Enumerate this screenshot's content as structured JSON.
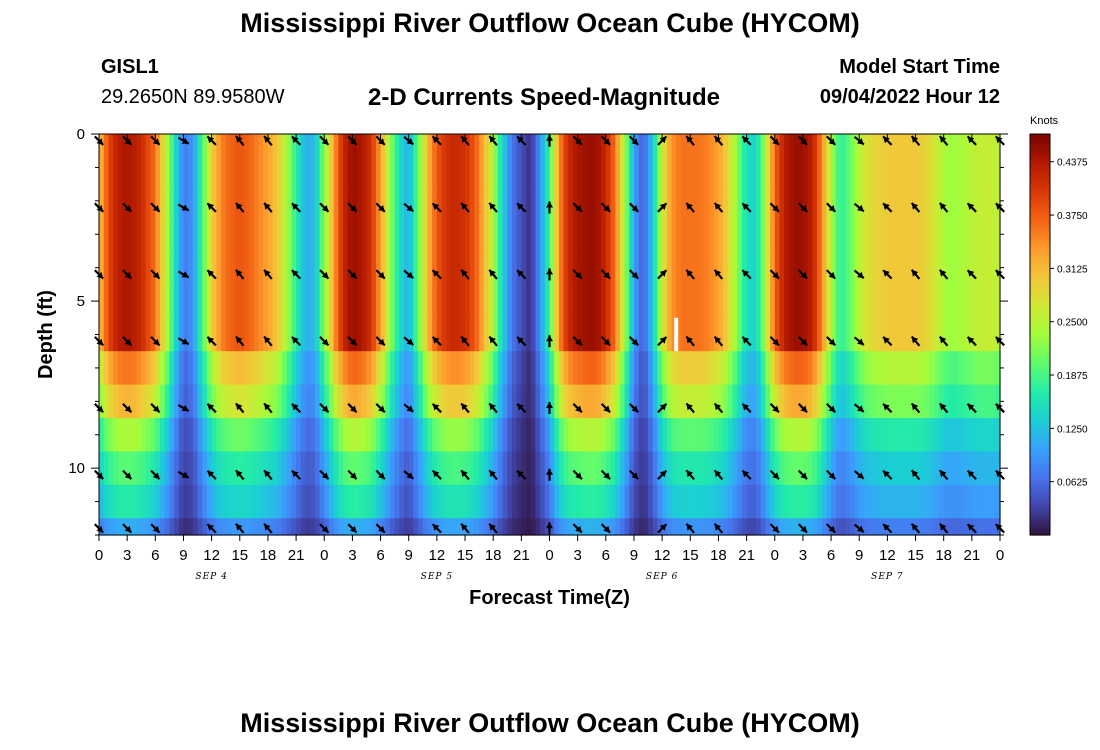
{
  "page": {
    "title": "Mississippi River Outflow Ocean Cube (HYCOM)",
    "title_repeat": "Mississippi River Outflow Ocean Cube (HYCOM)",
    "station_id": "GISL1",
    "station_coords": "29.2650N  89.9580W",
    "subtitle": "2-D Currents Speed-Magnitude",
    "model_start_label": "Model Start Time",
    "model_start_value": "09/04/2022 Hour 12"
  },
  "chart_data": {
    "type": "heatmap",
    "title": "2-D Currents Speed-Magnitude",
    "xlabel": "Forecast Time(Z)",
    "ylabel": "Depth (ft)",
    "x_tick_labels": [
      "0",
      "3",
      "6",
      "9",
      "12",
      "15",
      "18",
      "21",
      "0",
      "3",
      "6",
      "9",
      "12",
      "15",
      "18",
      "21",
      "0",
      "3",
      "6",
      "9",
      "12",
      "15",
      "18",
      "21",
      "0",
      "3",
      "6",
      "9",
      "12",
      "15",
      "18",
      "21",
      "0"
    ],
    "x_range_hours": [
      0,
      96
    ],
    "day_labels": [
      {
        "label": "SEP 4",
        "hour": 12
      },
      {
        "label": "SEP 5",
        "hour": 36
      },
      {
        "label": "SEP 6",
        "hour": 60
      },
      {
        "label": "SEP 7",
        "hour": 84
      }
    ],
    "y_ticks": [
      0,
      5,
      10
    ],
    "y_range_ft": [
      0,
      12
    ],
    "depth_rows_ft": [
      0,
      1,
      2,
      3,
      4,
      5,
      6,
      7,
      8,
      9,
      10,
      11,
      12
    ],
    "colorbar": {
      "unit": "Knots",
      "range": [
        0,
        0.47
      ],
      "tick_labels": [
        "0.4375",
        "0.3750",
        "0.3125",
        "0.2500",
        "0.1875",
        "0.1250",
        "0.0625"
      ],
      "tick_values": [
        0.4375,
        0.375,
        0.3125,
        0.25,
        0.1875,
        0.125,
        0.0625
      ],
      "colors": [
        "#30123b",
        "#4145ab",
        "#4675ed",
        "#39a2fc",
        "#1bcfd4",
        "#24eca6",
        "#61fc6c",
        "#a4fc3b",
        "#d1e834",
        "#f3c63a",
        "#fe9b2d",
        "#f36315",
        "#d93806",
        "#b11901",
        "#7a0402"
      ]
    },
    "surface_speed_by_hour": [
      [
        0,
        0.3
      ],
      [
        1,
        0.39
      ],
      [
        2,
        0.43
      ],
      [
        3,
        0.44
      ],
      [
        4,
        0.43
      ],
      [
        5,
        0.4
      ],
      [
        6,
        0.36
      ],
      [
        7,
        0.27
      ],
      [
        8,
        0.16
      ],
      [
        9,
        0.07
      ],
      [
        10,
        0.09
      ],
      [
        11,
        0.19
      ],
      [
        12,
        0.29
      ],
      [
        13,
        0.35
      ],
      [
        14,
        0.37
      ],
      [
        15,
        0.38
      ],
      [
        16,
        0.37
      ],
      [
        17,
        0.35
      ],
      [
        18,
        0.33
      ],
      [
        19,
        0.3
      ],
      [
        20,
        0.24
      ],
      [
        21,
        0.17
      ],
      [
        22,
        0.11
      ],
      [
        23,
        0.12
      ],
      [
        24,
        0.22
      ],
      [
        25,
        0.33
      ],
      [
        26,
        0.42
      ],
      [
        27,
        0.45
      ],
      [
        28,
        0.44
      ],
      [
        29,
        0.41
      ],
      [
        30,
        0.33
      ],
      [
        31,
        0.23
      ],
      [
        32,
        0.15
      ],
      [
        33,
        0.11
      ],
      [
        34,
        0.2
      ],
      [
        35,
        0.31
      ],
      [
        36,
        0.38
      ],
      [
        37,
        0.41
      ],
      [
        38,
        0.42
      ],
      [
        39,
        0.41
      ],
      [
        40,
        0.38
      ],
      [
        41,
        0.32
      ],
      [
        42,
        0.24
      ],
      [
        43,
        0.14
      ],
      [
        44,
        0.07
      ],
      [
        45,
        0.04
      ],
      [
        46,
        0.02
      ],
      [
        47,
        0.09
      ],
      [
        48,
        0.18
      ],
      [
        49,
        0.34
      ],
      [
        50,
        0.42
      ],
      [
        51,
        0.44
      ],
      [
        52,
        0.45
      ],
      [
        53,
        0.45
      ],
      [
        54,
        0.42
      ],
      [
        55,
        0.36
      ],
      [
        56,
        0.24
      ],
      [
        57,
        0.1
      ],
      [
        58,
        0.05
      ],
      [
        59,
        0.13
      ],
      [
        60,
        0.26
      ],
      [
        61,
        0.34
      ],
      [
        62,
        0.36
      ],
      [
        63,
        0.36
      ],
      [
        64,
        0.36
      ],
      [
        65,
        0.35
      ],
      [
        66,
        0.33
      ],
      [
        67,
        0.29
      ],
      [
        68,
        0.22
      ],
      [
        69,
        0.15
      ],
      [
        70,
        0.14
      ],
      [
        71,
        0.24
      ],
      [
        72,
        0.37
      ],
      [
        73,
        0.43
      ],
      [
        74,
        0.45
      ],
      [
        75,
        0.45
      ],
      [
        76,
        0.43
      ],
      [
        77,
        0.35
      ],
      [
        78,
        0.24
      ],
      [
        79,
        0.17
      ],
      [
        80,
        0.2
      ],
      [
        81,
        0.25
      ],
      [
        82,
        0.28
      ],
      [
        83,
        0.29
      ],
      [
        84,
        0.3
      ],
      [
        85,
        0.3
      ],
      [
        86,
        0.3
      ],
      [
        87,
        0.3
      ],
      [
        88,
        0.29
      ],
      [
        89,
        0.27
      ],
      [
        90,
        0.24
      ],
      [
        91,
        0.23
      ],
      [
        92,
        0.24
      ],
      [
        93,
        0.25
      ],
      [
        94,
        0.26
      ],
      [
        95,
        0.26
      ],
      [
        96,
        0.25
      ]
    ],
    "depth_speed_factor": [
      1.0,
      1.0,
      1.0,
      1.0,
      1.0,
      1.0,
      1.0,
      0.82,
      0.72,
      0.55,
      0.45,
      0.38,
      0.25
    ],
    "arrow_depths_ft": [
      0.2,
      2.2,
      4.2,
      6.2,
      8.2,
      10.2,
      11.8
    ],
    "arrow_hours": [
      0,
      3,
      6,
      9,
      12,
      15,
      18,
      21,
      24,
      27,
      30,
      33,
      36,
      39,
      42,
      45,
      48,
      51,
      54,
      57,
      60,
      63,
      66,
      69,
      72,
      75,
      78,
      81,
      84,
      87,
      90,
      93,
      96
    ],
    "arrow_direction_deg_by_hour": [
      [
        0,
        135
      ],
      [
        3,
        135
      ],
      [
        6,
        135
      ],
      [
        9,
        120
      ],
      [
        12,
        315
      ],
      [
        15,
        320
      ],
      [
        18,
        320
      ],
      [
        21,
        315
      ],
      [
        24,
        135
      ],
      [
        27,
        135
      ],
      [
        30,
        135
      ],
      [
        33,
        130
      ],
      [
        36,
        315
      ],
      [
        39,
        320
      ],
      [
        42,
        320
      ],
      [
        45,
        315
      ],
      [
        48,
        0
      ],
      [
        51,
        135
      ],
      [
        54,
        135
      ],
      [
        57,
        135
      ],
      [
        60,
        45
      ],
      [
        63,
        320
      ],
      [
        66,
        320
      ],
      [
        69,
        315
      ],
      [
        72,
        135
      ],
      [
        75,
        135
      ],
      [
        78,
        135
      ],
      [
        81,
        130
      ],
      [
        84,
        315
      ],
      [
        87,
        320
      ],
      [
        90,
        320
      ],
      [
        93,
        315
      ],
      [
        96,
        315
      ]
    ],
    "marker": {
      "hour": 61.5,
      "depth_top_ft": 5.5,
      "depth_bottom_ft": 6.5,
      "color": "#ffffff"
    }
  }
}
